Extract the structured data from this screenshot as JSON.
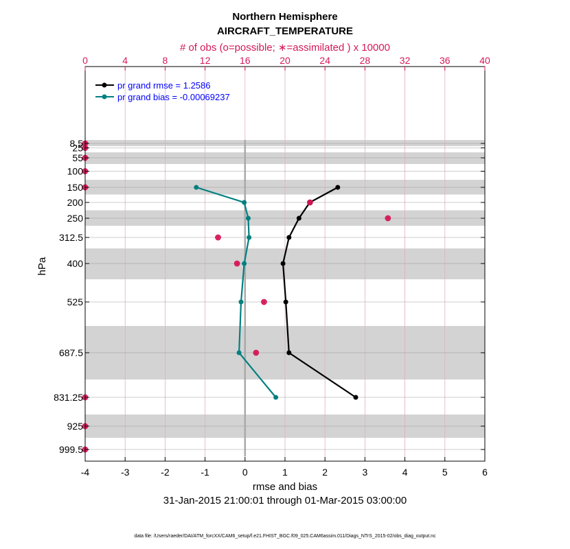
{
  "chart_data": {
    "type": "line",
    "title": "Northern Hemisphere",
    "subtitle": "AIRCRAFT_TEMPERATURE",
    "top_axis_label": "# of obs (o=possible; ∗=assimilated ) x 10000",
    "xlabel": "rmse and bias",
    "ylabel": "hPa",
    "date_range": "31-Jan-2015 21:00:01 through 01-Mar-2015 03:00:00",
    "footer": "data file: /Users/raeder/DAI/ATM_forcXX/CAM6_setup/f.e21.FHIST_BGC.f09_025.CAM6assim.011/Diags_NTrS_2015-02/obs_diag_output.nc",
    "xlim": [
      -4,
      6
    ],
    "xticks": [
      "-4",
      "-3",
      "-2",
      "-1",
      "0",
      "1",
      "2",
      "3",
      "4",
      "5",
      "6"
    ],
    "top_xlim": [
      0,
      40
    ],
    "top_xticks": [
      "0",
      "4",
      "8",
      "12",
      "16",
      "20",
      "24",
      "28",
      "32",
      "36",
      "40"
    ],
    "levels": [
      8.5,
      25,
      55,
      100,
      150,
      200,
      250,
      312.5,
      400,
      525,
      687.5,
      831.25,
      925,
      999.5
    ],
    "level_labels": [
      "8.5",
      "25",
      "55",
      "100",
      "150",
      "200",
      "250",
      "312.5",
      "400",
      "525",
      "687.5",
      "831.25",
      "925",
      "999.5"
    ],
    "shaded_bands_hPa": [
      [
        0,
        17
      ],
      [
        40,
        75
      ],
      [
        125,
        175
      ],
      [
        225,
        275
      ],
      [
        350,
        450
      ],
      [
        600,
        775
      ],
      [
        875,
        975
      ]
    ],
    "series": [
      {
        "name": "pr grand rmse = 1.2586",
        "color": "#000000",
        "levels": [
          150,
          200,
          250,
          312.5,
          400,
          525,
          687.5,
          831.25
        ],
        "values": [
          2.32,
          1.62,
          1.35,
          1.1,
          0.95,
          1.02,
          1.1,
          2.77
        ]
      },
      {
        "name": "pr grand bias = -0.00069237",
        "color": "#008080",
        "levels": [
          150,
          200,
          250,
          312.5,
          400,
          525,
          687.5,
          831.25
        ],
        "values": [
          -1.22,
          -0.02,
          0.08,
          0.1,
          -0.02,
          -0.1,
          -0.15,
          0.77
        ]
      }
    ],
    "obs_counts": {
      "color": "#d6175a",
      "units": "x 10000",
      "levels": [
        8.5,
        25,
        55,
        100,
        150,
        200,
        250,
        312.5,
        400,
        525,
        687.5,
        831.25,
        925,
        999.5
      ],
      "possible": [
        0.0,
        0.0,
        0.0,
        0.0,
        0.0,
        22.5,
        30.3,
        13.3,
        15.2,
        17.9,
        17.1,
        0.0,
        0.0,
        0.0
      ],
      "assimilated": [
        0.0,
        0.0,
        0.0,
        0.0,
        0.0,
        22.5,
        30.3,
        13.3,
        15.2,
        17.9,
        17.1,
        0.0,
        0.0,
        0.0
      ]
    }
  }
}
